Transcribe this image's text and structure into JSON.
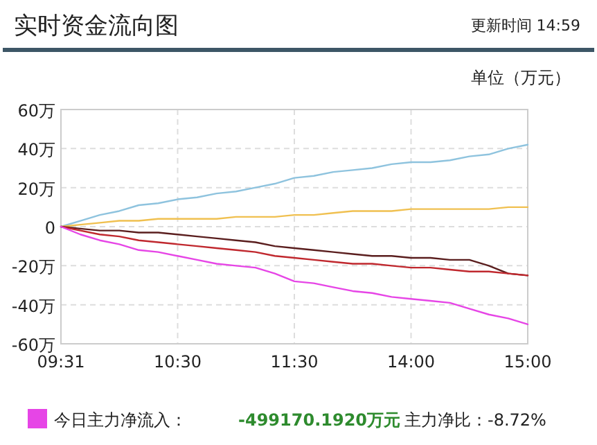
{
  "chart_data": {
    "type": "line",
    "title": "实时资金流向图",
    "annotations": [
      "更新时间 14:59",
      "单位（万元）",
      "-499170.1920万元",
      "主力净比：-8.72%"
    ],
    "categories": [
      "09:31",
      null,
      null,
      null,
      null,
      null,
      "10:30",
      null,
      null,
      null,
      null,
      null,
      "11:30",
      null,
      null,
      null,
      null,
      null,
      "14:00",
      null,
      null,
      null,
      null,
      null,
      "15:00"
    ],
    "ylim": [
      -60,
      60
    ],
    "yticks": [
      {
        "value": -60,
        "label": "-60万"
      },
      {
        "value": -40,
        "label": "-40万"
      },
      {
        "value": -20,
        "label": "-20万"
      },
      {
        "value": 0,
        "label": "0"
      },
      {
        "value": 20,
        "label": "20万"
      },
      {
        "value": 40,
        "label": "40万"
      },
      {
        "value": 60,
        "label": "60万"
      }
    ],
    "grid": true,
    "legend": "bottom",
    "marker": "none",
    "line_style": "solid",
    "series": [
      {
        "color": "#8ec3de",
        "values": [
          0,
          3,
          6,
          8,
          11,
          12,
          14,
          15,
          17,
          18,
          20,
          22,
          25,
          26,
          28,
          29,
          30,
          32,
          33,
          33,
          34,
          36,
          37,
          40,
          42
        ]
      },
      {
        "color": "#f0c050",
        "values": [
          0,
          1,
          2,
          3,
          3,
          4,
          4,
          4,
          4,
          5,
          5,
          5,
          6,
          6,
          7,
          8,
          8,
          8,
          9,
          9,
          9,
          9,
          9,
          10,
          10
        ]
      },
      {
        "color": "#5a1e1e",
        "values": [
          0,
          -1,
          -2,
          -2,
          -3,
          -3,
          -4,
          -5,
          -6,
          -7,
          -8,
          -10,
          -11,
          -12,
          -13,
          -14,
          -15,
          -15,
          -16,
          -16,
          -17,
          -17,
          -20,
          -24,
          -25
        ]
      },
      {
        "color": "#c0282e",
        "values": [
          0,
          -2,
          -4,
          -5,
          -7,
          -8,
          -9,
          -10,
          -11,
          -12,
          -13,
          -15,
          -16,
          -17,
          -18,
          -19,
          -19,
          -20,
          -21,
          -21,
          -22,
          -23,
          -23,
          -24,
          -25
        ]
      },
      {
        "name": "今日主力净流入：",
        "color": "#e645e6",
        "values": [
          0,
          -4,
          -7,
          -9,
          -12,
          -13,
          -15,
          -17,
          -19,
          -20,
          -21,
          -24,
          -28,
          -29,
          -31,
          -33,
          -34,
          -36,
          -37,
          -38,
          -39,
          -42,
          -45,
          -47,
          -50
        ]
      }
    ]
  }
}
